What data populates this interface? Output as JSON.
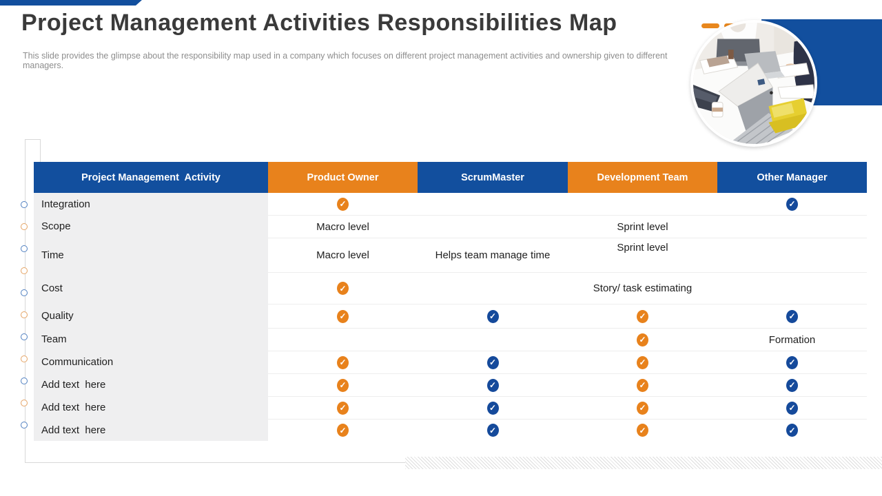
{
  "slide": {
    "title": "Project Management Activities Responsibilities Map",
    "subtitle": "This slide provides the glimpse about the responsibility map used in a company which focuses on different project management activities and ownership given to different managers."
  },
  "colors": {
    "blue": "#124f9e",
    "orange": "#e8821c",
    "check_blue": "#154a9b",
    "check_orange": "#e8821c",
    "bullet_blue": "#4f7fc0",
    "bullet_orange": "#e5a364"
  },
  "table": {
    "columns": [
      {
        "label": "Project Management  Activity",
        "style": "blue"
      },
      {
        "label": "Product Owner",
        "style": "orange"
      },
      {
        "label": "ScrumMaster",
        "style": "blue"
      },
      {
        "label": "Development Team",
        "style": "orange"
      },
      {
        "label": "Other Manager",
        "style": "blue"
      }
    ],
    "rows": [
      {
        "label": "Integration",
        "cells": [
          {
            "type": "check",
            "color": "orange"
          },
          {
            "type": "empty"
          },
          {
            "type": "empty"
          },
          {
            "type": "check",
            "color": "blue"
          }
        ]
      },
      {
        "label": "Scope",
        "cells": [
          {
            "type": "text",
            "value": "Macro level"
          },
          {
            "type": "empty"
          },
          {
            "type": "text",
            "value": "Sprint level"
          },
          {
            "type": "empty"
          }
        ]
      },
      {
        "label": "Time",
        "cells": [
          {
            "type": "text",
            "value": "Macro level"
          },
          {
            "type": "text",
            "value": "Helps team manage time"
          },
          {
            "type": "text",
            "value": "Sprint level",
            "valign": "top"
          },
          {
            "type": "empty"
          }
        ]
      },
      {
        "label": "Cost",
        "cells": [
          {
            "type": "check",
            "color": "orange"
          },
          {
            "type": "empty"
          },
          {
            "type": "text",
            "value": "Story/ task estimating"
          },
          {
            "type": "empty"
          }
        ]
      },
      {
        "label": "Quality",
        "cells": [
          {
            "type": "check",
            "color": "orange"
          },
          {
            "type": "check",
            "color": "blue"
          },
          {
            "type": "check",
            "color": "orange"
          },
          {
            "type": "check",
            "color": "blue"
          }
        ]
      },
      {
        "label": "Team",
        "cells": [
          {
            "type": "empty"
          },
          {
            "type": "empty"
          },
          {
            "type": "check",
            "color": "orange"
          },
          {
            "type": "text",
            "value": "Formation"
          }
        ]
      },
      {
        "label": "Communication",
        "cells": [
          {
            "type": "check",
            "color": "orange"
          },
          {
            "type": "check",
            "color": "blue"
          },
          {
            "type": "check",
            "color": "orange"
          },
          {
            "type": "check",
            "color": "blue"
          }
        ]
      },
      {
        "label": "Add text  here",
        "cells": [
          {
            "type": "check",
            "color": "orange"
          },
          {
            "type": "check",
            "color": "blue"
          },
          {
            "type": "check",
            "color": "orange"
          },
          {
            "type": "check",
            "color": "blue"
          }
        ]
      },
      {
        "label": "Add text  here",
        "cells": [
          {
            "type": "check",
            "color": "orange"
          },
          {
            "type": "check",
            "color": "blue"
          },
          {
            "type": "check",
            "color": "orange"
          },
          {
            "type": "check",
            "color": "blue"
          }
        ]
      },
      {
        "label": "Add text  here",
        "cells": [
          {
            "type": "check",
            "color": "orange"
          },
          {
            "type": "check",
            "color": "blue"
          },
          {
            "type": "check",
            "color": "orange"
          },
          {
            "type": "check",
            "color": "blue"
          }
        ]
      }
    ],
    "check_glyph": "✓"
  },
  "decorations": {
    "side_bullets": [
      "blue",
      "orange",
      "blue",
      "orange",
      "blue",
      "orange",
      "blue",
      "orange",
      "blue",
      "orange",
      "blue"
    ]
  }
}
